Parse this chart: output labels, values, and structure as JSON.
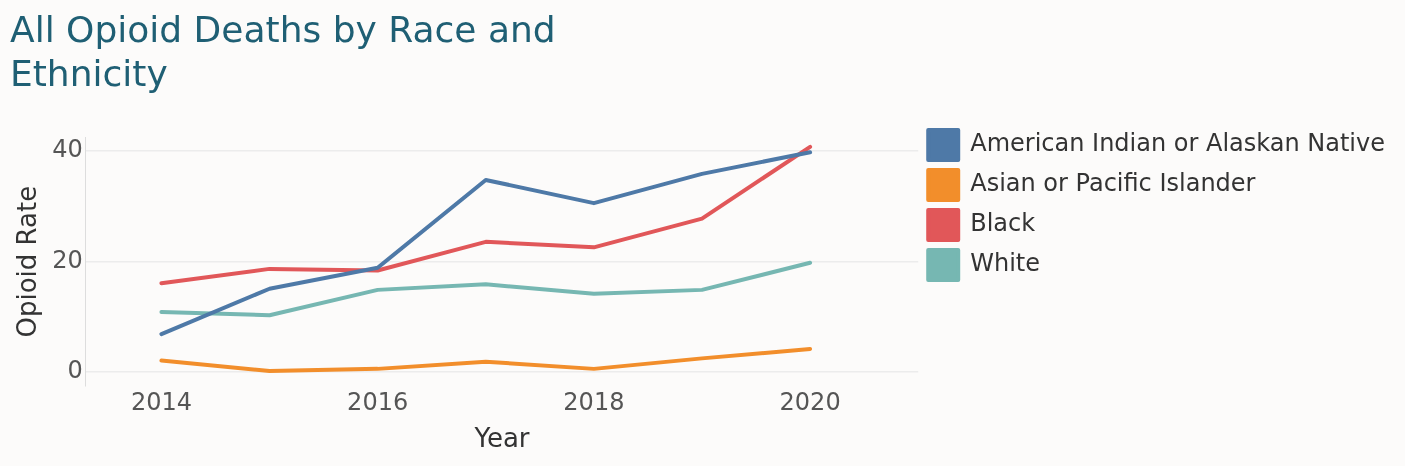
{
  "chart_data": {
    "type": "line",
    "title": "All Opioid Deaths by Race and Ethnicity",
    "xlabel": "Year",
    "ylabel": "Opioid Rate",
    "x": [
      2014,
      2015,
      2016,
      2017,
      2018,
      2019,
      2020
    ],
    "series": [
      {
        "name": "American Indian or Alaskan Native",
        "color": "#4e79a7",
        "values": [
          6.9,
          15.1,
          18.9,
          34.8,
          30.6,
          35.9,
          39.8
        ]
      },
      {
        "name": "Asian or Pacific Islander",
        "color": "#f28e2b",
        "values": [
          2.1,
          0.2,
          0.6,
          1.9,
          0.6,
          2.5,
          4.2
        ]
      },
      {
        "name": "Black",
        "color": "#e15759",
        "values": [
          16.1,
          18.7,
          18.4,
          23.6,
          22.6,
          27.8,
          40.8
        ]
      },
      {
        "name": "White",
        "color": "#76b7b2",
        "values": [
          10.9,
          10.3,
          14.9,
          15.9,
          14.2,
          14.9,
          19.8
        ]
      }
    ],
    "xlim": [
      2013.3,
      2021
    ],
    "xticks": [
      2014,
      2016,
      2018,
      2020
    ],
    "ylim": [
      -2.5,
      42.5
    ],
    "yticks": [
      0,
      20,
      40
    ],
    "grid": "y",
    "legend": "right",
    "marker": "none",
    "line_style": "solid"
  }
}
